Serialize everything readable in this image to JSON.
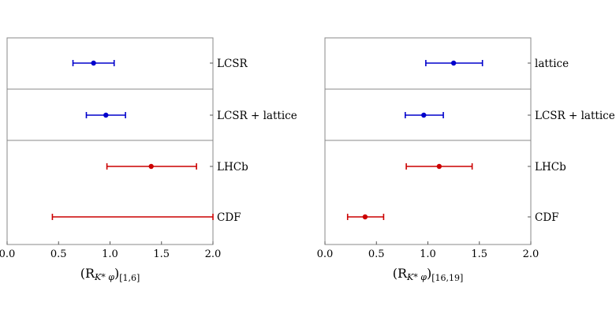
{
  "chart_data": [
    {
      "type": "errorbar",
      "xlim": [
        0,
        2
      ],
      "xticks": [
        "0.0",
        "0.5",
        "1.0",
        "1.5",
        "2.0"
      ],
      "xlabel_main": "(R",
      "xlabel_sub": "K* φ",
      "xlabel_close": ")",
      "xlabel_range": "[1,6]",
      "groups_separators_after": [
        0,
        1
      ],
      "rows": [
        {
          "label": "LCSR",
          "value": 0.84,
          "low": 0.64,
          "high": 1.04,
          "color": "#0000cc"
        },
        {
          "label": "LCSR + lattice",
          "value": 0.96,
          "low": 0.77,
          "high": 1.15,
          "color": "#0000cc"
        },
        {
          "label": "LHCb",
          "value": 1.4,
          "low": 0.97,
          "high": 1.84,
          "color": "#cc0000"
        },
        {
          "label": "CDF",
          "value": null,
          "low": 0.44,
          "high": 2.0,
          "color": "#cc0000"
        }
      ]
    },
    {
      "type": "errorbar",
      "xlim": [
        0,
        2
      ],
      "xticks": [
        "0.0",
        "0.5",
        "1.0",
        "1.5",
        "2.0"
      ],
      "xlabel_main": "(R",
      "xlabel_sub": "K* φ",
      "xlabel_close": ")",
      "xlabel_range": "[16,19]",
      "groups_separators_after": [
        0,
        1
      ],
      "rows": [
        {
          "label": "lattice",
          "value": 1.25,
          "low": 0.98,
          "high": 1.53,
          "color": "#0000cc"
        },
        {
          "label": "LCSR + lattice",
          "value": 0.96,
          "low": 0.78,
          "high": 1.15,
          "color": "#0000cc"
        },
        {
          "label": "LHCb",
          "value": 1.11,
          "low": 0.79,
          "high": 1.43,
          "color": "#cc0000"
        },
        {
          "label": "CDF",
          "value": 0.39,
          "low": 0.22,
          "high": 0.57,
          "color": "#cc0000"
        }
      ]
    }
  ]
}
